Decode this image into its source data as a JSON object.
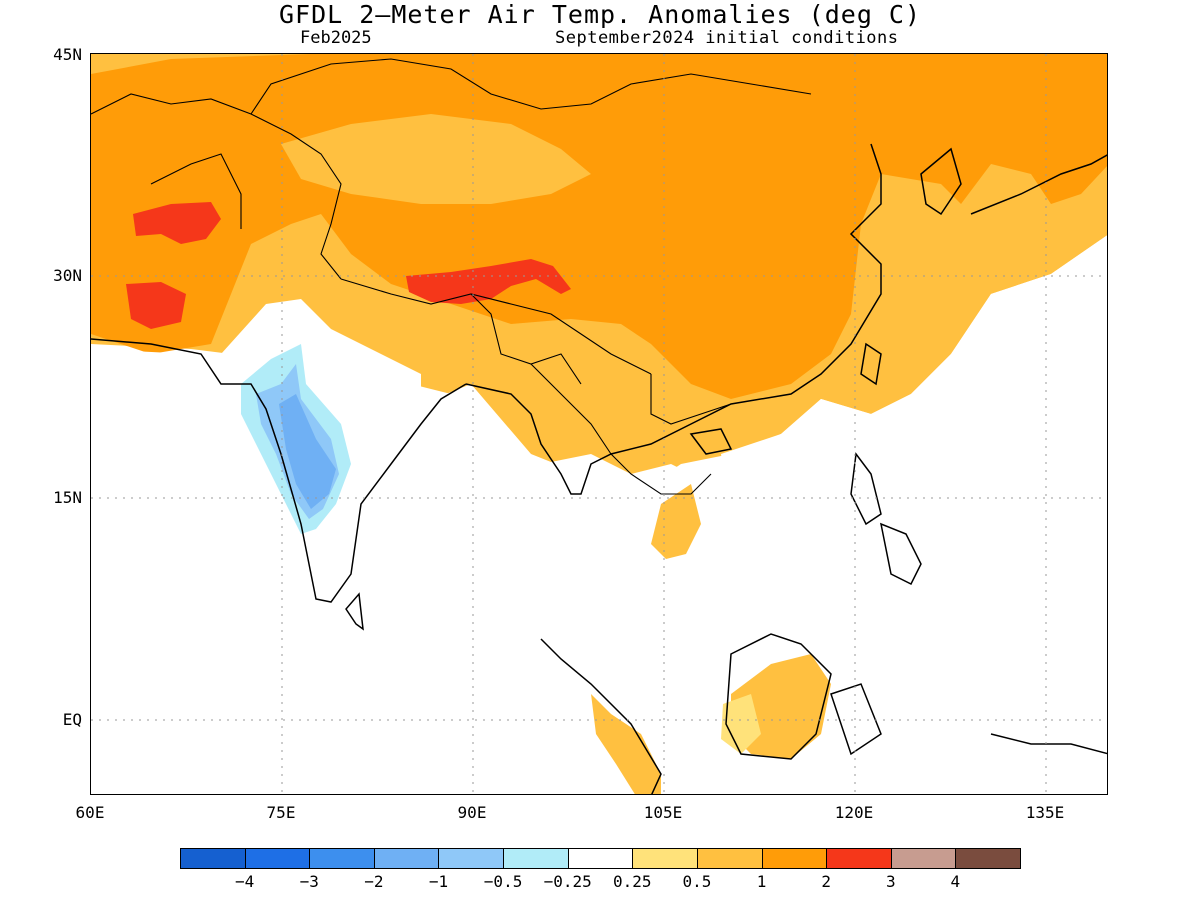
{
  "title": "GFDL 2—Meter Air Temp. Anomalies (deg C)",
  "subtitle_left": "Feb2025",
  "subtitle_right": "September2024 initial conditions",
  "lat_labels": [
    "45N",
    "30N",
    "15N",
    "EQ"
  ],
  "lon_labels": [
    "60E",
    "75E",
    "90E",
    "105E",
    "120E",
    "135E"
  ],
  "colorbar": {
    "colors": [
      "#1560d0",
      "#1e6fe6",
      "#3d8fee",
      "#6fb0f4",
      "#8fc8f8",
      "#b1ecf8",
      "#ffffff",
      "#ffe27a",
      "#ffc040",
      "#ff9c08",
      "#f5371a",
      "#c79c90",
      "#7a4c3e"
    ],
    "labels": [
      "−4",
      "−3",
      "−2",
      "−1",
      "−0.5",
      "−0.25",
      "0.25",
      "0.5",
      "1",
      "2",
      "3",
      "4"
    ]
  },
  "map": {
    "region": "60E-140E, 5S-45N",
    "regions": [
      {
        "name": "warm-2",
        "color": "#ff9c08"
      },
      {
        "name": "warm-1",
        "color": "#ffc040"
      },
      {
        "name": "warm-05",
        "color": "#ffe27a"
      },
      {
        "name": "hot-3",
        "color": "#f5371a"
      },
      {
        "name": "cool",
        "color": "#8fc8f8"
      }
    ]
  }
}
